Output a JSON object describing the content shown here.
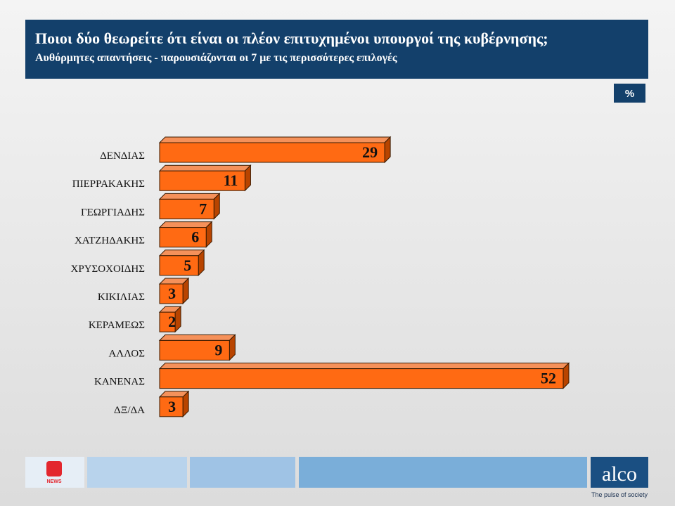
{
  "chart_data": {
    "type": "bar",
    "orientation": "horizontal",
    "title": "Ποιοι δύο θεωρείτε ότι είναι οι πλέον επιτυχημένοι υπουργοί της κυβέρνησης;",
    "subtitle": "Αυθόρμητες απαντήσεις - παρουσιάζονται οι 7 με τις περισσότερες επιλογές",
    "unit_label": "%",
    "categories": [
      "ΔΕΝΔΙΑΣ",
      "ΠΙΕΡΡΑΚΑΚΗΣ",
      "ΓΕΩΡΓΙΑΔΗΣ",
      "ΧΑΤΖΗΔΑΚΗΣ",
      "ΧΡΥΣΟΧΟΙΔΗΣ",
      "ΚΙΚΙΛΙΑΣ",
      "ΚΕΡΑΜΕΩΣ",
      "ΑΛΛΟΣ",
      "ΚΑΝΕΝΑΣ",
      "ΔΞ/ΔΑ"
    ],
    "values": [
      29,
      11,
      7,
      6,
      5,
      3,
      2,
      9,
      52,
      3
    ],
    "color": "#ff6a13"
  },
  "footer": {
    "news_logo": "NEWS",
    "brand": "alco",
    "tagline": "The pulse of society"
  }
}
